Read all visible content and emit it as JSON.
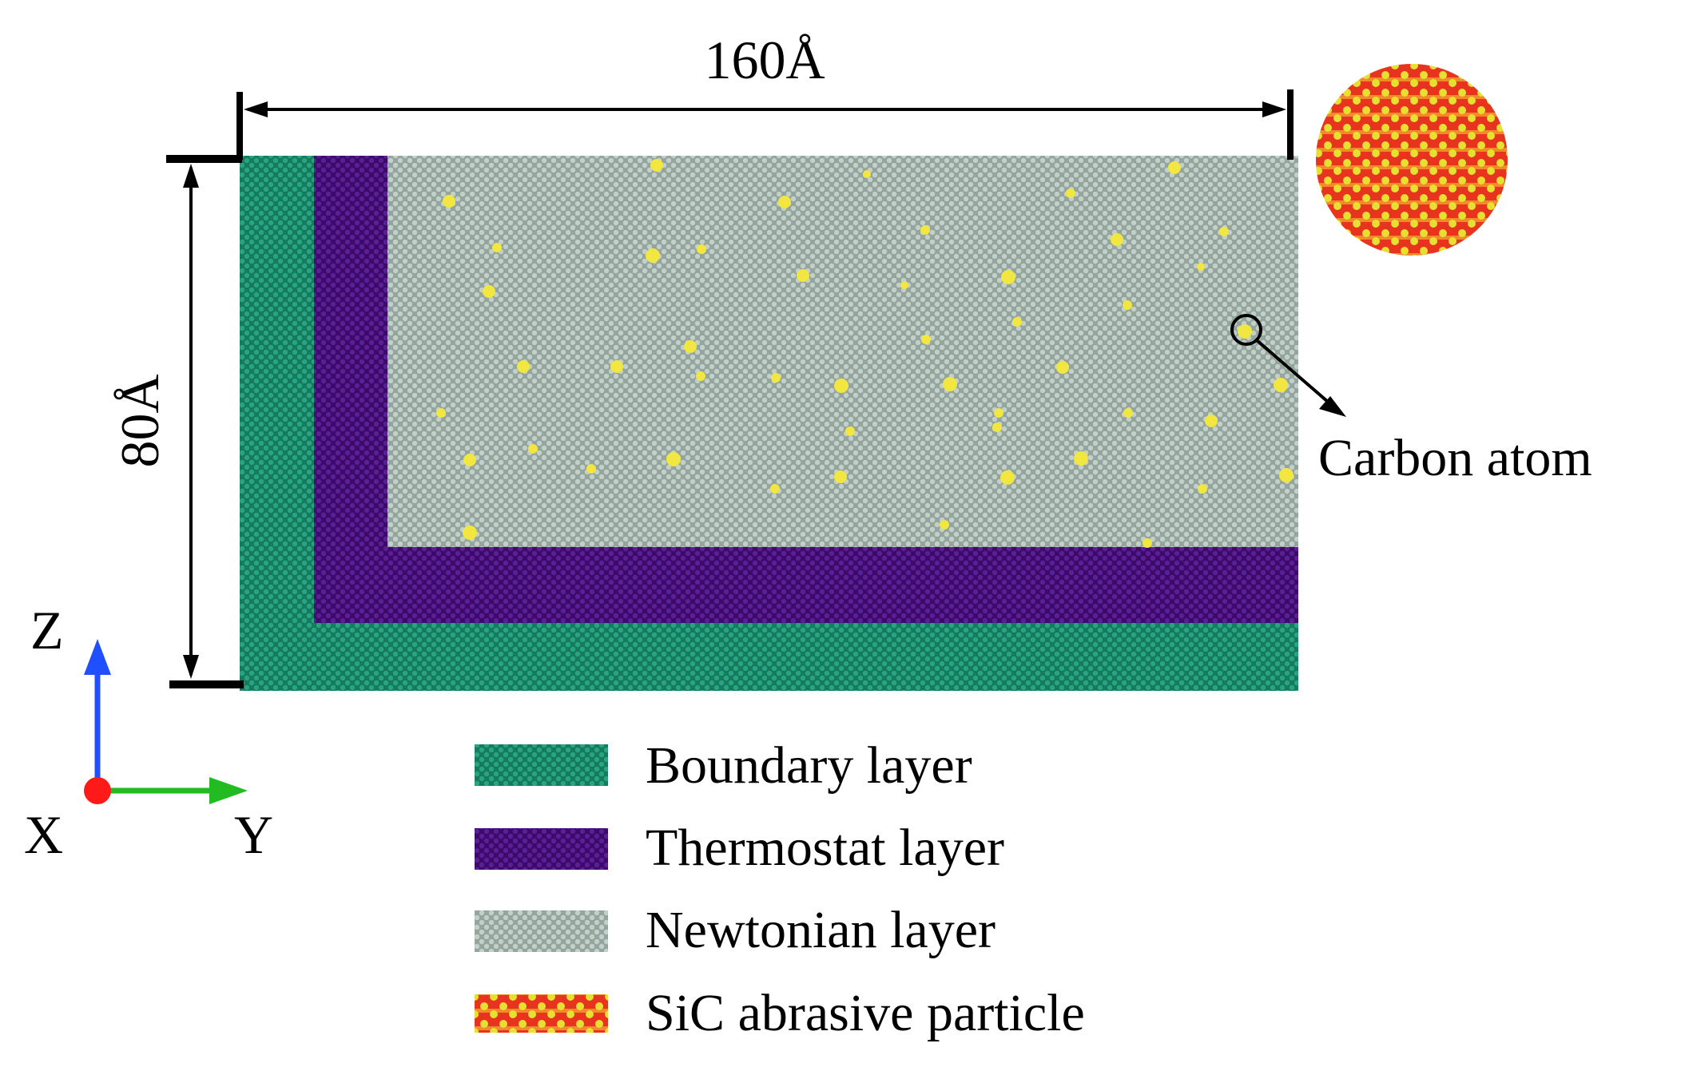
{
  "dimensions": {
    "width_label": "160Å",
    "height_label": "80Å"
  },
  "callout": {
    "label": "Carbon atom"
  },
  "axes": {
    "z_label": "Z",
    "x_label": "X",
    "y_label": "Y",
    "z_color": "#1f4fff",
    "y_color": "#22bb22",
    "x_color": "#ff1a1a"
  },
  "legend": {
    "items": [
      {
        "label": "Boundary layer",
        "pattern": "boundary"
      },
      {
        "label": "Thermostat layer",
        "pattern": "thermostat"
      },
      {
        "label": "Newtonian layer",
        "pattern": "newtonian"
      },
      {
        "label": "SiC abrasive particle",
        "pattern": "sic"
      }
    ]
  },
  "colors": {
    "boundary": "#1a8f6f",
    "thermostat": "#4a1080",
    "newtonian": "#a9b8b2",
    "carbon": "#f2e640",
    "sic_red": "#e8331f",
    "sic_yellow": "#e8e030"
  }
}
